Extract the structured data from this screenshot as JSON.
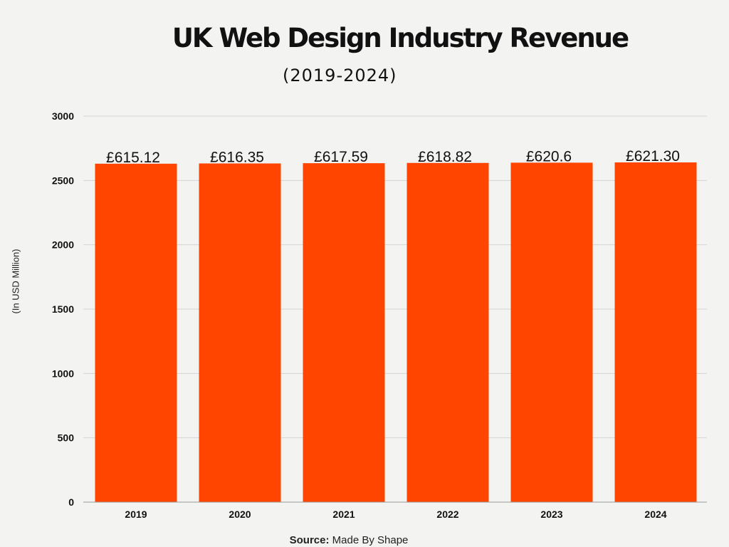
{
  "chart_data": {
    "type": "bar",
    "title": "UK Web Design Industry Revenue",
    "subtitle": "(2019-2024)",
    "xlabel": "",
    "ylabel": "(In USD Million)",
    "categories": [
      "2019",
      "2020",
      "2021",
      "2022",
      "2023",
      "2024"
    ],
    "values": [
      2630,
      2632,
      2634,
      2636,
      2638,
      2640
    ],
    "data_labels": [
      "£615.12",
      "£616.35",
      "£617.59",
      "£618.82",
      "£620.6",
      "£621.30"
    ],
    "ylim": [
      0,
      3000
    ],
    "yticks": [
      "0",
      "500",
      "1000",
      "1500",
      "2000",
      "2500",
      "3000"
    ],
    "grid": true,
    "legend": "none",
    "bar_color": "#ff4500",
    "source_label": "Source:",
    "source_text": "Made By Shape"
  }
}
